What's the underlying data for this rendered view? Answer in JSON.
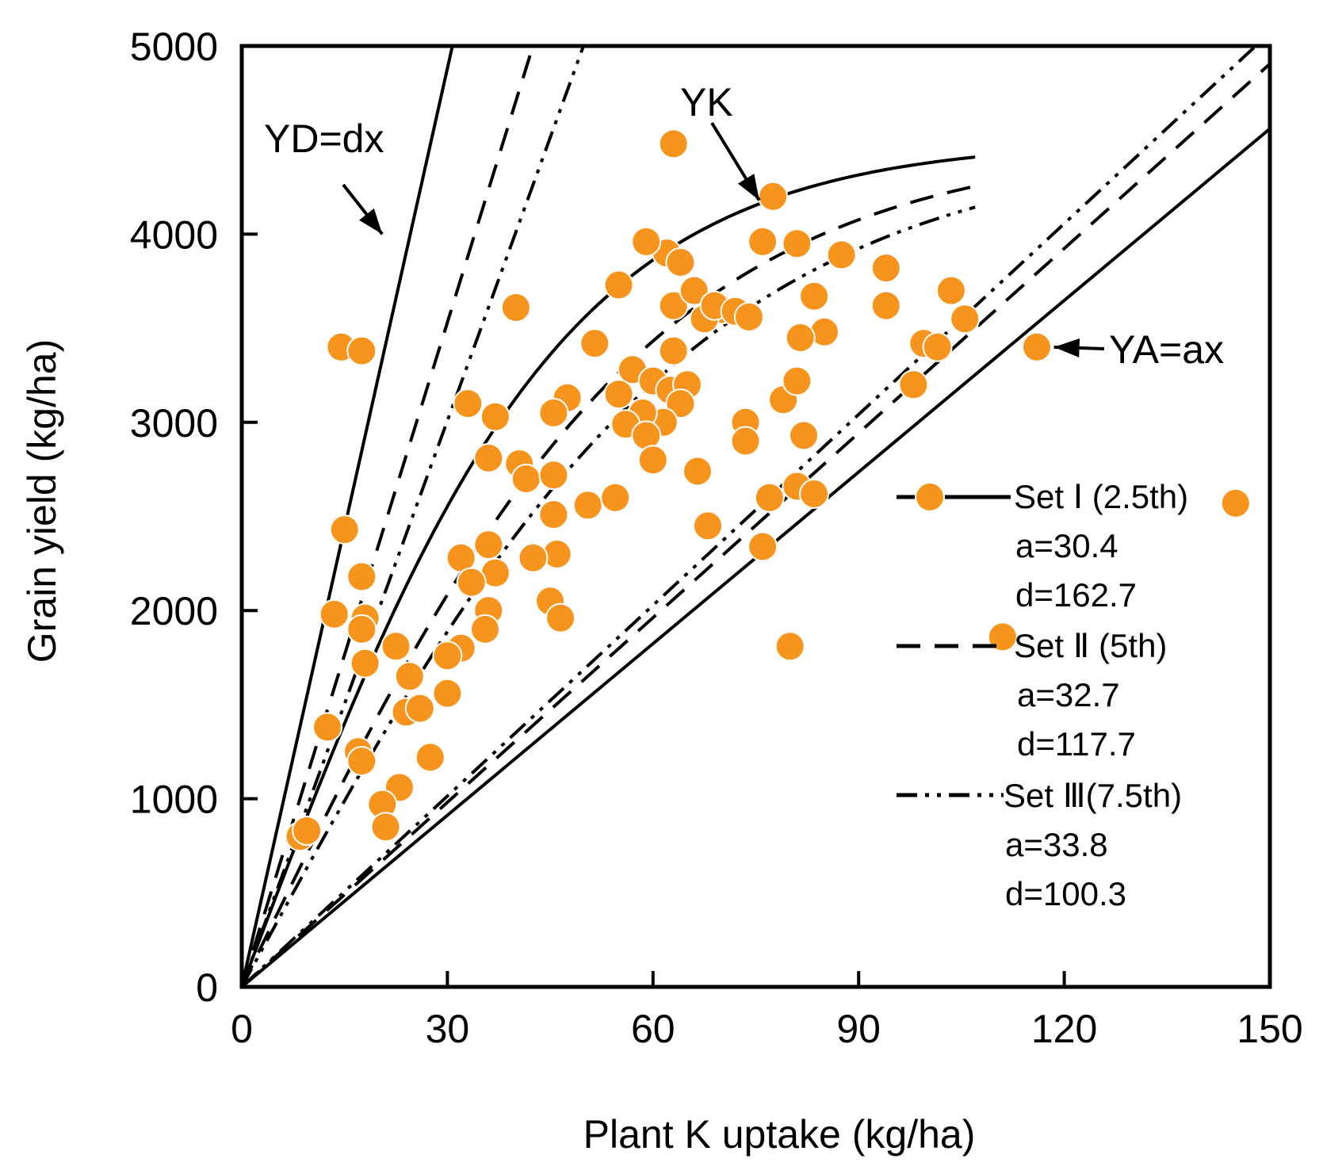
{
  "chart_data": {
    "type": "scatter",
    "xlabel": "Plant K uptake (kg/ha)",
    "ylabel": "Grain yield (kg/ha)",
    "xlim": [
      0,
      150
    ],
    "ylim": [
      0,
      5000
    ],
    "xticks": [
      0,
      30,
      60,
      90,
      120,
      150
    ],
    "yticks": [
      0,
      1000,
      2000,
      3000,
      4000,
      5000
    ],
    "grid": false,
    "marker_color": "#f7941d",
    "line_color": "#000000",
    "annotations": [
      {
        "text": "YD=dx",
        "points_to": [
          20.5,
          4000
        ]
      },
      {
        "text": "YK",
        "points_to": [
          75.5,
          4180
        ]
      },
      {
        "text": "YA=ax",
        "points_to": [
          118.5,
          3400
        ]
      }
    ],
    "legend": {
      "position": "right",
      "entries": [
        {
          "label": "Set Ⅰ (2.5th)",
          "a_label": "a=30.4",
          "d_label": "d=162.7",
          "style": "solid"
        },
        {
          "label": "Set Ⅱ (5th)",
          "a_label": "a=32.7",
          "d_label": "d=117.7",
          "style": "dashed"
        },
        {
          "label": "Set Ⅲ(7.5th)",
          "a_label": "a=33.8",
          "d_label": "d=100.3",
          "style": "dashdotdot"
        }
      ]
    },
    "series": [
      {
        "name": "Set Ⅰ (2.5th)",
        "style": "solid",
        "a": 30.4,
        "d": 162.7,
        "ymax": 4500
      },
      {
        "name": "Set Ⅱ (5th)",
        "style": "dashed",
        "a": 32.7,
        "d": 117.7,
        "ymax": 4500
      },
      {
        "name": "Set Ⅲ(7.5th)",
        "style": "dashdotdot",
        "a": 33.8,
        "d": 100.3,
        "ymax": 4500
      }
    ],
    "scatter_points": [
      [
        63,
        4480
      ],
      [
        77.5,
        4200
      ],
      [
        62,
        3900
      ],
      [
        70,
        3600
      ],
      [
        76,
        3960
      ],
      [
        81,
        3950
      ],
      [
        87.5,
        3890
      ],
      [
        94,
        3820
      ],
      [
        103.5,
        3700
      ],
      [
        94,
        3620
      ],
      [
        83.5,
        3670
      ],
      [
        85,
        3480
      ],
      [
        81.5,
        3450
      ],
      [
        105.5,
        3550
      ],
      [
        99.5,
        3420
      ],
      [
        101.5,
        3400
      ],
      [
        98,
        3200
      ],
      [
        116,
        3400
      ],
      [
        145,
        2570
      ],
      [
        111,
        1860
      ],
      [
        80,
        1810
      ],
      [
        76,
        2340
      ],
      [
        77,
        2600
      ],
      [
        81,
        2660
      ],
      [
        83.5,
        2620
      ],
      [
        82,
        2930
      ],
      [
        79,
        3120
      ],
      [
        81,
        3220
      ],
      [
        73.5,
        3000
      ],
      [
        73.5,
        2900
      ],
      [
        68,
        2450
      ],
      [
        66.5,
        2740
      ],
      [
        55,
        3730
      ],
      [
        59,
        3960
      ],
      [
        40,
        3610
      ],
      [
        51.5,
        3420
      ],
      [
        57,
        3280
      ],
      [
        63,
        3380
      ],
      [
        60,
        3220
      ],
      [
        62.5,
        3170
      ],
      [
        65,
        3200
      ],
      [
        64,
        3100
      ],
      [
        61.5,
        3000
      ],
      [
        58.5,
        3050
      ],
      [
        56,
        2990
      ],
      [
        55,
        3150
      ],
      [
        59,
        2930
      ],
      [
        60,
        2800
      ],
      [
        63,
        3620
      ],
      [
        64,
        3850
      ],
      [
        66,
        3700
      ],
      [
        67.5,
        3550
      ],
      [
        69,
        3620
      ],
      [
        72,
        3590
      ],
      [
        74,
        3560
      ],
      [
        47.5,
        3130
      ],
      [
        45.5,
        3050
      ],
      [
        33,
        3100
      ],
      [
        37,
        3030
      ],
      [
        36,
        2810
      ],
      [
        40.5,
        2780
      ],
      [
        41.5,
        2700
      ],
      [
        45.5,
        2720
      ],
      [
        45.5,
        2510
      ],
      [
        50.5,
        2560
      ],
      [
        54.5,
        2600
      ],
      [
        46,
        2300
      ],
      [
        42.5,
        2280
      ],
      [
        45,
        2050
      ],
      [
        46.5,
        1960
      ],
      [
        36,
        2350
      ],
      [
        37,
        2200
      ],
      [
        36,
        2000
      ],
      [
        35.5,
        1900
      ],
      [
        32,
        2280
      ],
      [
        33.5,
        2150
      ],
      [
        32,
        1800
      ],
      [
        30,
        1760
      ],
      [
        30,
        1560
      ],
      [
        27.5,
        1220
      ],
      [
        22.5,
        1810
      ],
      [
        24.5,
        1650
      ],
      [
        24,
        1460
      ],
      [
        26,
        1480
      ],
      [
        23,
        1060
      ],
      [
        20.5,
        970
      ],
      [
        21,
        850
      ],
      [
        14.5,
        3400
      ],
      [
        17.5,
        3380
      ],
      [
        15,
        2430
      ],
      [
        17.5,
        2180
      ],
      [
        18,
        1960
      ],
      [
        17.5,
        1900
      ],
      [
        18,
        1720
      ],
      [
        13.5,
        1980
      ],
      [
        12.5,
        1380
      ],
      [
        17,
        1250
      ],
      [
        17.5,
        1200
      ],
      [
        8.5,
        800
      ],
      [
        9.5,
        830
      ]
    ]
  }
}
